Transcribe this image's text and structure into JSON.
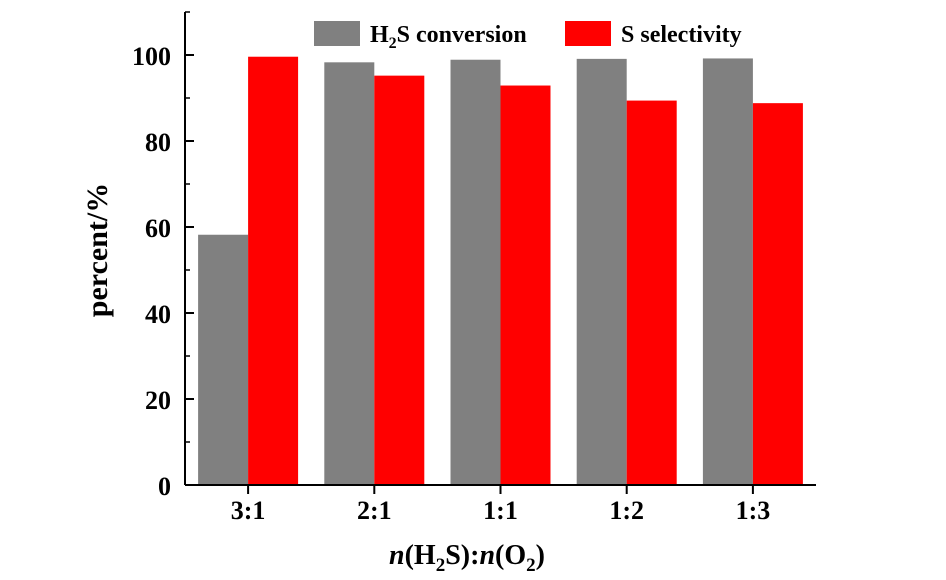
{
  "chart_data": {
    "type": "bar",
    "title": "",
    "xlabel": {
      "italic_n": "n",
      "h2s_main": "(H",
      "sub_2a": "2",
      "h2s_end": "S):",
      "italic_n2": "n",
      "o2_main": "(O",
      "sub_2b": "2",
      "o2_end": ")"
    },
    "ylabel": "percent/%",
    "ylim": [
      0,
      110
    ],
    "yticks": [
      0,
      20,
      40,
      60,
      80,
      100
    ],
    "categories": [
      "3:1",
      "2:1",
      "1:1",
      "1:2",
      "1:3"
    ],
    "series": [
      {
        "name": "H2S conversion",
        "legend": {
          "pre": "H",
          "sub": "2",
          "post": "S conversion"
        },
        "color": "#808080",
        "values": [
          58.2,
          98.3,
          98.9,
          99.1,
          99.2
        ]
      },
      {
        "name": "S selectivity",
        "legend": {
          "pre": "S selectivity",
          "sub": "",
          "post": ""
        },
        "color": "#ff0000",
        "values": [
          99.6,
          95.2,
          92.9,
          89.4,
          88.8
        ]
      }
    ],
    "legend_position": "top",
    "grid": false
  }
}
